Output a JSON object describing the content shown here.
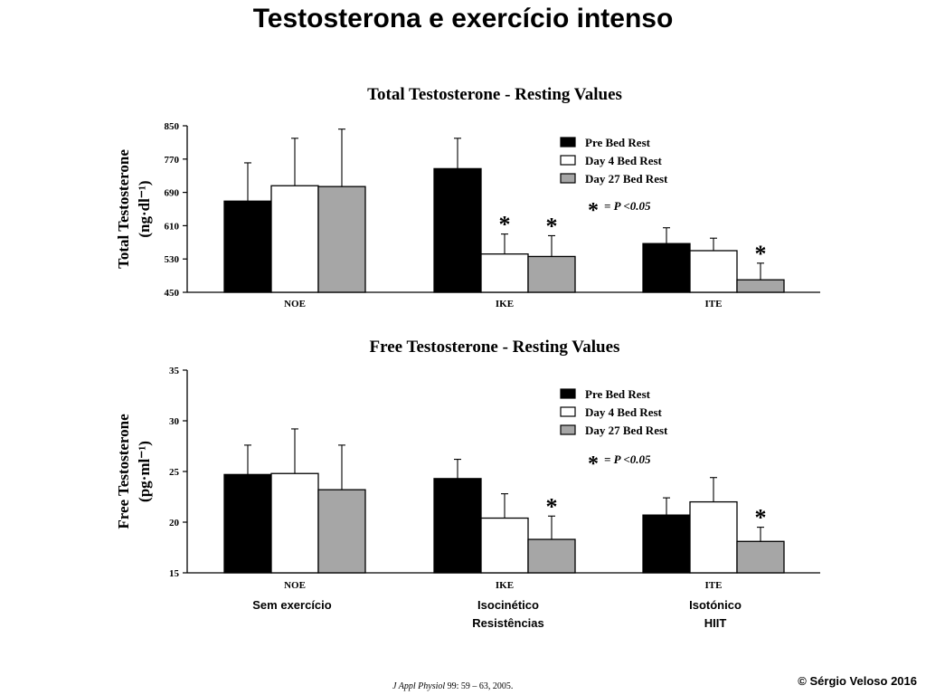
{
  "slide": {
    "title": "Testosterona e exercício intenso",
    "copyright": "© Sérgio Veloso 2016",
    "citation_journal": "J Appl Physiol",
    "citation_rest": " 99: 59 – 63, 2005.",
    "group_descriptions": [
      {
        "group": "NOE",
        "line1": "Sem exercício",
        "line2": ""
      },
      {
        "group": "IKE",
        "line1": "Isocinético",
        "line2": "Resistências"
      },
      {
        "group": "ITE",
        "line1": "Isotónico",
        "line2": "HIIT"
      }
    ]
  },
  "chart_data": [
    {
      "type": "bar",
      "title": "Total Testosterone - Resting Values",
      "ylabel": "Total Testosterone",
      "ylabel_unit": "(ng·dl⁻¹)",
      "ylim": [
        450,
        850
      ],
      "yticks": [
        450,
        530,
        610,
        690,
        770,
        850
      ],
      "categories": [
        "NOE",
        "IKE",
        "ITE"
      ],
      "series": [
        {
          "name": "Pre Bed Rest",
          "color": "#000000",
          "values": [
            669,
            747,
            567
          ],
          "errors": [
            92,
            73,
            38
          ],
          "significant": [
            false,
            false,
            false
          ]
        },
        {
          "name": "Day 4 Bed Rest",
          "color": "#ffffff",
          "values": [
            706,
            542,
            550
          ],
          "errors": [
            114,
            48,
            30
          ],
          "significant": [
            false,
            true,
            false
          ]
        },
        {
          "name": "Day 27 Bed Rest",
          "color": "#a6a6a6",
          "values": [
            704,
            536,
            480
          ],
          "errors": [
            138,
            50,
            40
          ],
          "significant": [
            false,
            true,
            true
          ]
        }
      ],
      "significance_label": "= P <0.05",
      "significance_symbol": "*",
      "legend_position": "top-right",
      "grid": false
    },
    {
      "type": "bar",
      "title": "Free Testosterone - Resting Values",
      "ylabel": "Free Testosterone",
      "ylabel_unit": "(pg·ml⁻¹)",
      "ylim": [
        15,
        35
      ],
      "yticks": [
        15,
        20,
        25,
        30,
        35
      ],
      "categories": [
        "NOE",
        "IKE",
        "ITE"
      ],
      "series": [
        {
          "name": "Pre Bed Rest",
          "color": "#000000",
          "values": [
            24.7,
            24.3,
            20.7
          ],
          "errors": [
            2.9,
            1.9,
            1.7
          ],
          "significant": [
            false,
            false,
            false
          ]
        },
        {
          "name": "Day 4 Bed Rest",
          "color": "#ffffff",
          "values": [
            24.8,
            20.4,
            22.0
          ],
          "errors": [
            4.4,
            2.4,
            2.4
          ],
          "significant": [
            false,
            false,
            false
          ]
        },
        {
          "name": "Day 27 Bed Rest",
          "color": "#a6a6a6",
          "values": [
            23.2,
            18.3,
            18.1
          ],
          "errors": [
            4.4,
            2.3,
            1.4
          ],
          "significant": [
            false,
            true,
            true
          ]
        }
      ],
      "significance_label": "= P <0.05",
      "significance_symbol": "*",
      "legend_position": "top-right",
      "grid": false
    }
  ]
}
